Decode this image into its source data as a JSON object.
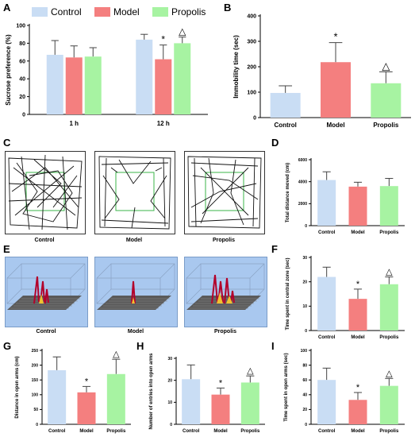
{
  "colors": {
    "Control": "#c9ddf4",
    "Model": "#f47f7f",
    "Propolis": "#a7f3a2"
  },
  "panels": {
    "A": "A",
    "B": "B",
    "C": "C",
    "D": "D",
    "E": "E",
    "F": "F",
    "G": "G",
    "H": "H",
    "I": "I"
  },
  "legend": [
    "Control",
    "Model",
    "Propolis"
  ],
  "images": {
    "track_labels": [
      "Control",
      "Model",
      "Propolis"
    ],
    "heat_labels": [
      "Control",
      "Model",
      "Propolis"
    ]
  },
  "chart_data": [
    {
      "id": "A",
      "type": "bar",
      "ylabel": "Sucrose preference (%)",
      "categories": [
        "1 h",
        "12 h"
      ],
      "ylim": [
        0,
        100
      ],
      "ticks": [
        0,
        20,
        40,
        60,
        80,
        100
      ],
      "series": [
        {
          "name": "Control",
          "values": [
            67,
            84
          ],
          "err": [
            16,
            6
          ]
        },
        {
          "name": "Model",
          "values": [
            64,
            62
          ],
          "err": [
            13,
            16
          ]
        },
        {
          "name": "Propolis",
          "values": [
            65,
            80
          ],
          "err": [
            10,
            7
          ]
        }
      ],
      "annotations": [
        {
          "series": 1,
          "cat": 1,
          "text": "*"
        },
        {
          "series": 2,
          "cat": 1,
          "text": "△"
        }
      ]
    },
    {
      "id": "B",
      "type": "bar",
      "ylabel": "Immobility time (sec)",
      "categories": [
        "Control",
        "Model",
        "Propolis"
      ],
      "ylim": [
        0,
        400
      ],
      "ticks": [
        0,
        100,
        200,
        300,
        400
      ],
      "values": [
        97,
        218,
        135
      ],
      "err": [
        28,
        77,
        45
      ],
      "annotations": [
        {
          "cat": 1,
          "text": "*"
        },
        {
          "cat": 2,
          "text": "△"
        }
      ]
    },
    {
      "id": "D",
      "type": "bar",
      "ylabel": "Total distance moved (cm)",
      "categories": [
        "Control",
        "Model",
        "Propolis"
      ],
      "ylim": [
        0,
        6000
      ],
      "ticks": [
        0,
        2000,
        4000,
        6000
      ],
      "values": [
        4150,
        3550,
        3600
      ],
      "err": [
        750,
        400,
        700
      ],
      "annotations": []
    },
    {
      "id": "F",
      "type": "bar",
      "ylabel": "Time spent in central zone (sec)",
      "categories": [
        "Control",
        "Model",
        "Propolis"
      ],
      "ylim": [
        0,
        30
      ],
      "ticks": [
        0,
        10,
        20,
        30
      ],
      "values": [
        22,
        13,
        19
      ],
      "err": [
        4,
        4,
        3
      ],
      "annotations": [
        {
          "cat": 1,
          "text": "*"
        },
        {
          "cat": 2,
          "text": "△"
        }
      ]
    },
    {
      "id": "G",
      "type": "bar",
      "ylabel": "Distance in open arms (cm)",
      "categories": [
        "Control",
        "Model",
        "Propolis"
      ],
      "ylim": [
        0,
        250
      ],
      "ticks": [
        0,
        50,
        100,
        150,
        200,
        250
      ],
      "values": [
        183,
        108,
        170
      ],
      "err": [
        45,
        20,
        50
      ],
      "annotations": [
        {
          "cat": 1,
          "text": "*"
        },
        {
          "cat": 2,
          "text": "△"
        }
      ]
    },
    {
      "id": "H",
      "type": "bar",
      "ylabel": "Number of entries into open arms",
      "categories": [
        "Control",
        "Model",
        "Propolis"
      ],
      "ylim": [
        0,
        30
      ],
      "ticks": [
        0,
        10,
        20,
        30
      ],
      "values": [
        20.5,
        13.5,
        19
      ],
      "err": [
        6.5,
        3,
        3
      ],
      "annotations": [
        {
          "cat": 1,
          "text": "*"
        },
        {
          "cat": 2,
          "text": "△"
        }
      ]
    },
    {
      "id": "I",
      "type": "bar",
      "ylabel": "Time spent in open arms (sec)",
      "categories": [
        "Control",
        "Model",
        "Propolis"
      ],
      "ylim": [
        0,
        100
      ],
      "ticks": [
        0,
        20,
        40,
        60,
        80,
        100
      ],
      "values": [
        60,
        33,
        52
      ],
      "err": [
        16,
        10,
        10
      ],
      "annotations": [
        {
          "cat": 1,
          "text": "*"
        },
        {
          "cat": 2,
          "text": "△"
        }
      ]
    }
  ]
}
